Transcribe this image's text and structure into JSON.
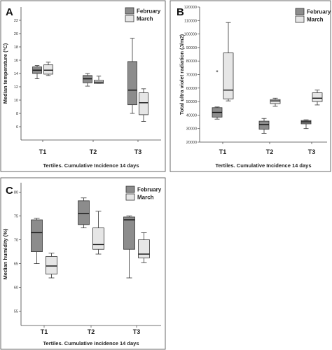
{
  "colors": {
    "February": "#8c8c8c",
    "March": "#e6e6e6",
    "frame": "#444444"
  },
  "chart_data": [
    {
      "panel": "A",
      "type": "box",
      "xlabel": "Tertiles. Cumulative Incidence 14 days",
      "ylabel": "Median temperature (ºC)",
      "categories": [
        "T1",
        "T2",
        "T3"
      ],
      "ylim": [
        4,
        24
      ],
      "yticks": [
        6,
        8,
        10,
        12,
        14,
        16,
        18,
        20,
        22
      ],
      "legend": {
        "position": "top-right",
        "entries": [
          "February",
          "March"
        ]
      },
      "series": [
        {
          "name": "February",
          "boxes": [
            {
              "min": 13.2,
              "q1": 14.0,
              "median": 14.5,
              "q3": 15.0,
              "max": 15.2
            },
            {
              "min": 12.1,
              "q1": 12.6,
              "median": 13.2,
              "q3": 13.7,
              "max": 14.0
            },
            {
              "min": 8.0,
              "q1": 9.3,
              "median": 11.5,
              "q3": 15.8,
              "max": 19.3
            }
          ]
        },
        {
          "name": "March",
          "boxes": [
            {
              "min": 13.7,
              "q1": 13.9,
              "median": 14.5,
              "q3": 15.3,
              "max": 15.7
            },
            {
              "min": 12.5,
              "q1": 12.5,
              "median": 12.7,
              "q3": 13.0,
              "max": 13.6
            },
            {
              "min": 6.8,
              "q1": 7.8,
              "median": 9.6,
              "q3": 11.1,
              "max": 11.7
            }
          ]
        }
      ]
    },
    {
      "panel": "B",
      "type": "box",
      "xlabel": "Tertiles. Cumulative Incidence 14 days",
      "ylabel": "Total ultra violet radiation (J/m2)",
      "categories": [
        "T1",
        "T2",
        "T3"
      ],
      "ylim": [
        20000,
        120000
      ],
      "yticks": [
        20000,
        30000,
        40000,
        50000,
        60000,
        70000,
        80000,
        90000,
        100000,
        110000,
        120000
      ],
      "legend": {
        "position": "top-right",
        "entries": [
          "February",
          "March"
        ]
      },
      "series": [
        {
          "name": "February",
          "boxes": [
            {
              "min": 37000,
              "q1": 38500,
              "median": 42000,
              "q3": 45500,
              "max": 46000,
              "outliers": [
                72000
              ]
            },
            {
              "min": 26500,
              "q1": 29500,
              "median": 33000,
              "q3": 35500,
              "max": 37500
            },
            {
              "min": 30000,
              "q1": 33500,
              "median": 35000,
              "q3": 36000,
              "max": 36500
            }
          ]
        },
        {
          "name": "March",
          "boxes": [
            {
              "min": 50500,
              "q1": 52000,
              "median": 58500,
              "q3": 86000,
              "max": 108500
            },
            {
              "min": 46500,
              "q1": 48500,
              "median": 50500,
              "q3": 51500,
              "max": 52500
            },
            {
              "min": 47500,
              "q1": 50000,
              "median": 52500,
              "q3": 56500,
              "max": 58500
            }
          ]
        }
      ]
    },
    {
      "panel": "C",
      "type": "box",
      "xlabel": "Tertiles. Cumulative incidence 14 days",
      "ylabel": "Median humidity (%)",
      "categories": [
        "T1",
        "T2",
        "T3"
      ],
      "ylim": [
        52,
        82
      ],
      "yticks": [
        55,
        60,
        65,
        70,
        75,
        80
      ],
      "legend": {
        "position": "top-right",
        "entries": [
          "February",
          "March"
        ]
      },
      "series": [
        {
          "name": "February",
          "boxes": [
            {
              "min": 65.0,
              "q1": 67.5,
              "median": 71.5,
              "q3": 74.2,
              "max": 74.5
            },
            {
              "min": 72.5,
              "q1": 73.2,
              "median": 75.5,
              "q3": 78.2,
              "max": 78.8
            },
            {
              "min": 62.0,
              "q1": 68.0,
              "median": 74.2,
              "q3": 74.8,
              "max": 75.0
            }
          ]
        },
        {
          "name": "March",
          "boxes": [
            {
              "min": 62.0,
              "q1": 62.8,
              "median": 64.5,
              "q3": 66.5,
              "max": 67.2
            },
            {
              "min": 67.0,
              "q1": 68.0,
              "median": 69.0,
              "q3": 72.5,
              "max": 76.0
            },
            {
              "min": 65.2,
              "q1": 66.2,
              "median": 67.0,
              "q3": 70.0,
              "max": 71.5
            }
          ]
        }
      ]
    }
  ]
}
